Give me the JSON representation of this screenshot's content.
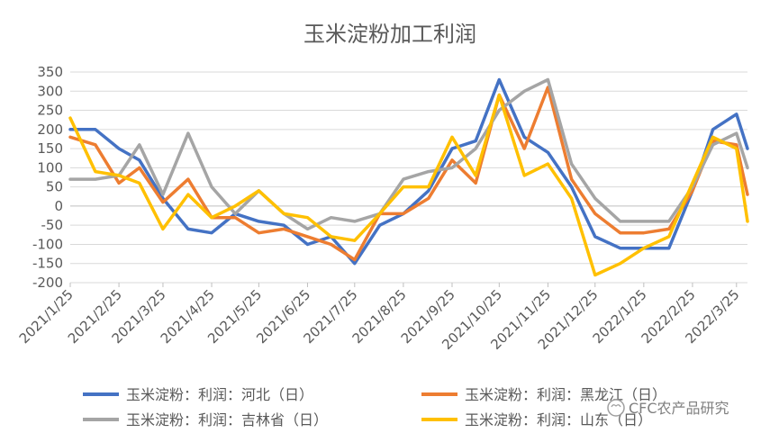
{
  "chart_data": {
    "type": "line",
    "title": "玉米淀粉加工利润",
    "xlabel": "",
    "ylabel": "",
    "ylim": [
      -200,
      350
    ],
    "yticks": [
      350,
      300,
      250,
      200,
      150,
      100,
      50,
      0,
      -50,
      -100,
      -150,
      -200
    ],
    "xticks": [
      "2021/1/25",
      "2021/2/25",
      "2021/3/25",
      "2021/4/25",
      "2021/5/25",
      "2021/6/25",
      "2021/7/25",
      "2021/8/25",
      "2021/9/25",
      "2021/10/25",
      "2021/11/25",
      "2021/12/25",
      "2022/1/25",
      "2022/2/25",
      "2022/3/25"
    ],
    "grid": "horizontal",
    "legend_position": "bottom",
    "x_dates": [
      "2021/1/25",
      "2021/2/10",
      "2021/2/25",
      "2021/3/10",
      "2021/3/25",
      "2021/4/10",
      "2021/4/25",
      "2021/5/10",
      "2021/5/25",
      "2021/6/10",
      "2021/6/25",
      "2021/7/10",
      "2021/7/25",
      "2021/8/10",
      "2021/8/25",
      "2021/9/10",
      "2021/9/25",
      "2021/10/10",
      "2021/10/25",
      "2021/11/10",
      "2021/11/25",
      "2021/12/10",
      "2021/12/25",
      "2022/1/10",
      "2022/1/25",
      "2022/2/10",
      "2022/2/25",
      "2022/3/10",
      "2022/3/25",
      "2022/4/1"
    ],
    "series": [
      {
        "name": "玉米淀粉：利润：河北（日）",
        "color": "#4472C4",
        "values": [
          200,
          200,
          150,
          120,
          20,
          -60,
          -70,
          -20,
          -40,
          -50,
          -100,
          -80,
          -150,
          -50,
          -20,
          40,
          150,
          170,
          330,
          180,
          140,
          50,
          -80,
          -110,
          -110,
          -110,
          40,
          200,
          240,
          150
        ]
      },
      {
        "name": "玉米淀粉：利润：黑龙江（日）",
        "color": "#ED7D31",
        "values": [
          180,
          160,
          60,
          100,
          10,
          70,
          -30,
          -30,
          -70,
          -60,
          -80,
          -100,
          -140,
          -20,
          -20,
          20,
          120,
          60,
          290,
          150,
          310,
          70,
          -20,
          -70,
          -70,
          -60,
          40,
          170,
          160,
          30
        ]
      },
      {
        "name": "玉米淀粉：利润：吉林省（日）",
        "color": "#A5A5A5",
        "values": [
          70,
          70,
          80,
          160,
          30,
          190,
          50,
          -20,
          40,
          -20,
          -60,
          -30,
          -40,
          -20,
          70,
          90,
          100,
          150,
          250,
          300,
          330,
          110,
          20,
          -40,
          -40,
          -40,
          50,
          160,
          190,
          100
        ]
      },
      {
        "name": "玉米淀粉：利润：山东（日）",
        "color": "#FFC000",
        "values": [
          230,
          90,
          80,
          60,
          -60,
          30,
          -30,
          0,
          40,
          -20,
          -30,
          -80,
          -90,
          -20,
          50,
          50,
          180,
          80,
          290,
          80,
          110,
          20,
          -180,
          -150,
          -110,
          -80,
          60,
          180,
          150,
          -40
        ]
      }
    ]
  },
  "watermark": "CFC农产品研究"
}
